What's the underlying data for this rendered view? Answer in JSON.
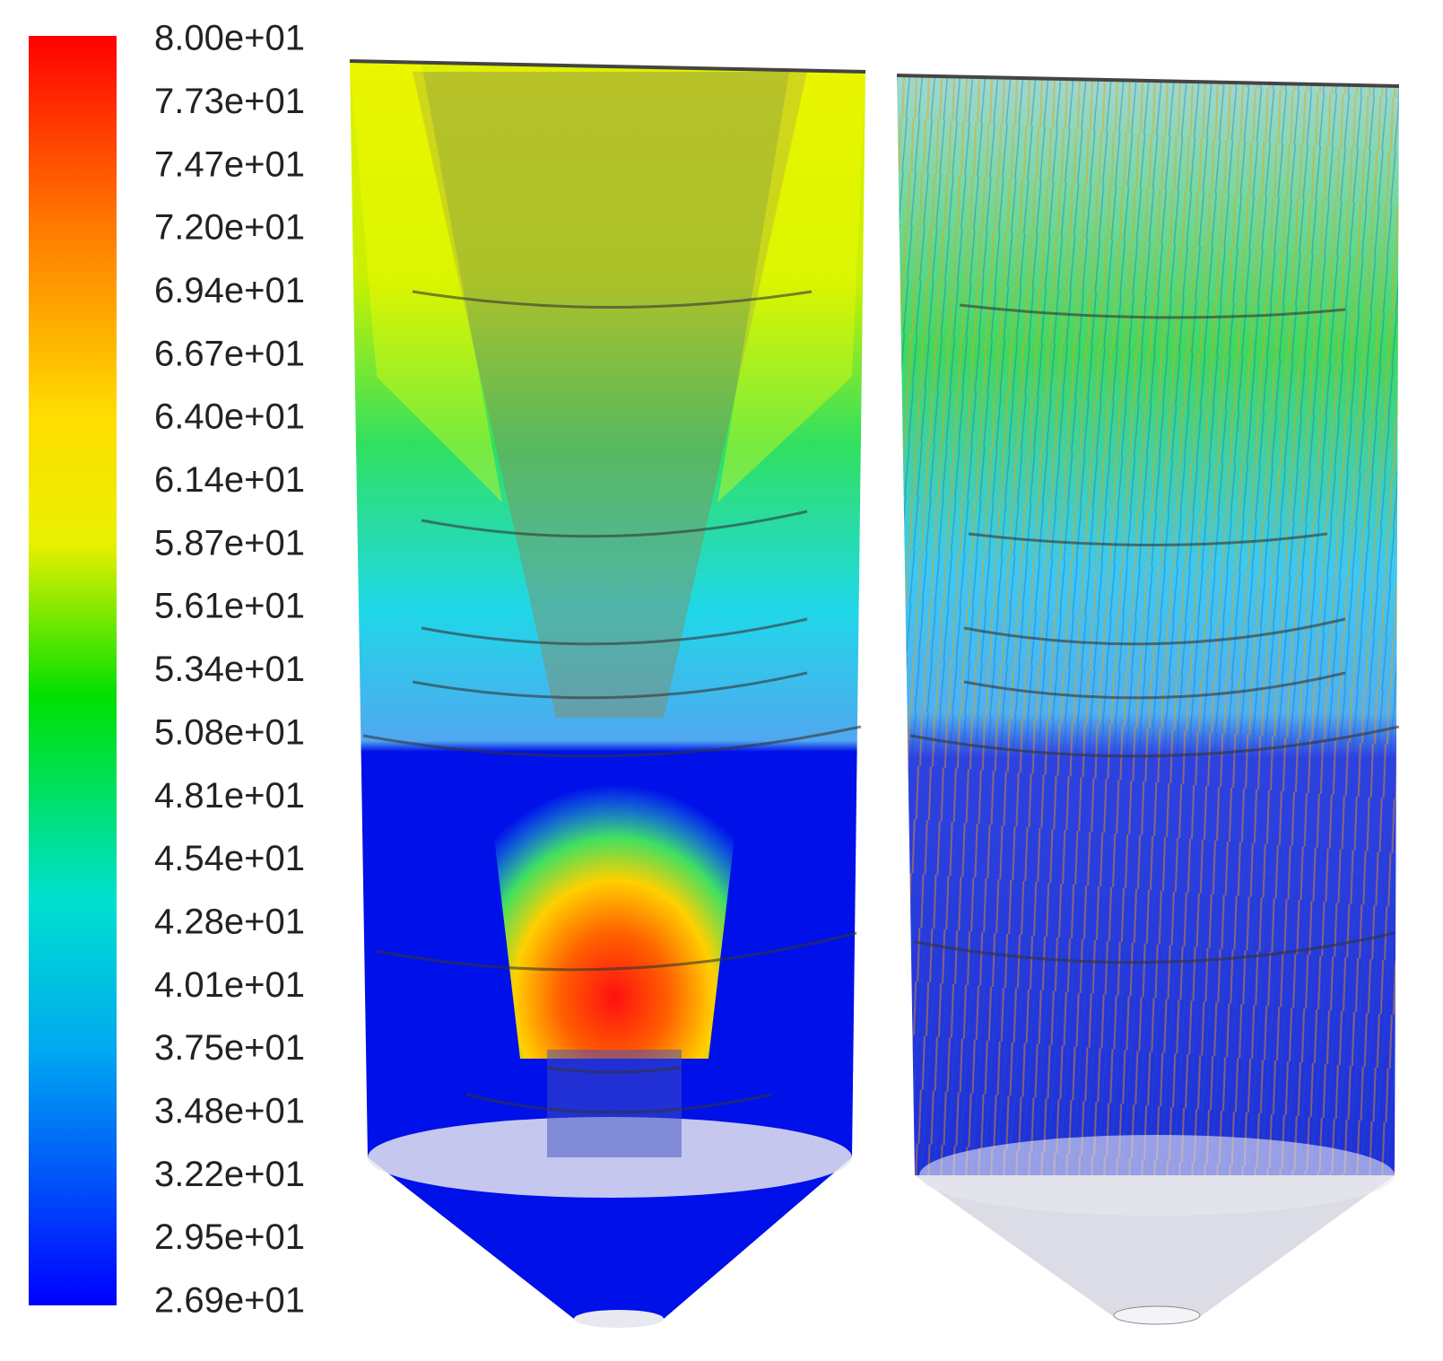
{
  "colorbar": {
    "labels": [
      "8.00e+01",
      "7.73e+01",
      "7.47e+01",
      "7.20e+01",
      "6.94e+01",
      "6.67e+01",
      "6.40e+01",
      "6.14e+01",
      "5.87e+01",
      "5.61e+01",
      "5.34e+01",
      "5.08e+01",
      "4.81e+01",
      "4.54e+01",
      "4.28e+01",
      "4.01e+01",
      "3.75e+01",
      "3.48e+01",
      "3.22e+01",
      "2.95e+01",
      "2.69e+01"
    ]
  }
}
